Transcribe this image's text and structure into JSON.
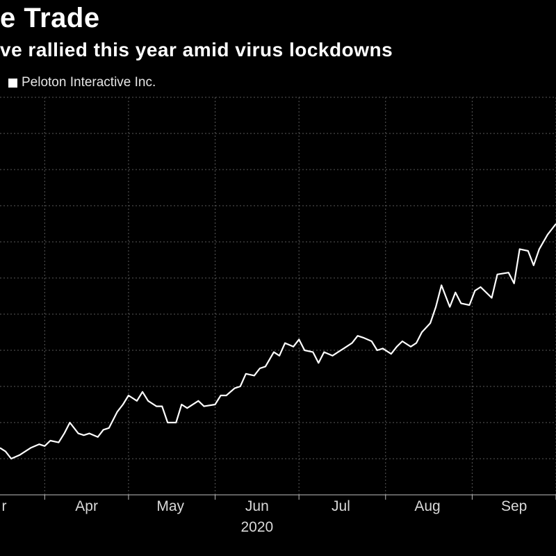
{
  "header": {
    "title": "e Trade",
    "subtitle": "ve rallied this year amid virus lockdowns"
  },
  "colors": {
    "background": "#000000",
    "line": "#ffffff",
    "grid": "#5a5a5a"
  },
  "chart_data": {
    "type": "line",
    "title": "e Trade",
    "subtitle": "ve rallied this year amid virus lockdowns",
    "legend": {
      "placement": "top-left",
      "entries": [
        "Peloton Interactive Inc."
      ]
    },
    "grid": true,
    "x_tick_labels": [
      "r",
      "Apr",
      "May",
      "Jun",
      "Jul",
      "Aug",
      "Sep"
    ],
    "x_year_label": "2020",
    "xlim": [
      "2020-03-16",
      "2020-10-01"
    ],
    "ylim": [
      0,
      11
    ],
    "series": [
      {
        "name": "Peloton Interactive Inc.",
        "x": [
          "2020-03-16",
          "2020-03-18",
          "2020-03-20",
          "2020-03-23",
          "2020-03-25",
          "2020-03-27",
          "2020-03-30",
          "2020-04-01",
          "2020-04-03",
          "2020-04-06",
          "2020-04-08",
          "2020-04-10",
          "2020-04-13",
          "2020-04-15",
          "2020-04-17",
          "2020-04-20",
          "2020-04-22",
          "2020-04-24",
          "2020-04-27",
          "2020-04-29",
          "2020-05-01",
          "2020-05-04",
          "2020-05-06",
          "2020-05-08",
          "2020-05-11",
          "2020-05-13",
          "2020-05-15",
          "2020-05-18",
          "2020-05-20",
          "2020-05-22",
          "2020-05-26",
          "2020-05-28",
          "2020-06-01",
          "2020-06-03",
          "2020-06-05",
          "2020-06-08",
          "2020-06-10",
          "2020-06-12",
          "2020-06-15",
          "2020-06-17",
          "2020-06-19",
          "2020-06-22",
          "2020-06-24",
          "2020-06-26",
          "2020-06-29",
          "2020-07-01",
          "2020-07-03",
          "2020-07-06",
          "2020-07-08",
          "2020-07-10",
          "2020-07-13",
          "2020-07-15",
          "2020-07-17",
          "2020-07-20",
          "2020-07-22",
          "2020-07-24",
          "2020-07-27",
          "2020-07-29",
          "2020-07-31",
          "2020-08-03",
          "2020-08-05",
          "2020-08-07",
          "2020-08-10",
          "2020-08-12",
          "2020-08-14",
          "2020-08-17",
          "2020-08-19",
          "2020-08-21",
          "2020-08-24",
          "2020-08-26",
          "2020-08-28",
          "2020-08-31",
          "2020-09-02",
          "2020-09-04",
          "2020-09-08",
          "2020-09-10",
          "2020-09-14",
          "2020-09-16",
          "2020-09-18",
          "2020-09-21",
          "2020-09-23",
          "2020-09-25",
          "2020-09-28",
          "2020-10-01"
        ],
        "values": [
          1.3,
          1.2,
          1.0,
          1.1,
          1.2,
          1.3,
          1.4,
          1.35,
          1.5,
          1.45,
          1.7,
          2.0,
          1.7,
          1.65,
          1.7,
          1.6,
          1.8,
          1.85,
          2.3,
          2.5,
          2.75,
          2.6,
          2.85,
          2.6,
          2.45,
          2.45,
          2.0,
          2.0,
          2.5,
          2.4,
          2.6,
          2.45,
          2.5,
          2.75,
          2.75,
          2.95,
          3.0,
          3.35,
          3.3,
          3.5,
          3.55,
          3.95,
          3.85,
          4.2,
          4.1,
          4.3,
          4.0,
          3.95,
          3.65,
          3.95,
          3.85,
          3.95,
          4.05,
          4.2,
          4.4,
          4.35,
          4.25,
          4.0,
          4.05,
          3.9,
          4.1,
          4.25,
          4.1,
          4.2,
          4.5,
          4.75,
          5.2,
          5.8,
          5.2,
          5.6,
          5.3,
          5.25,
          5.65,
          5.75,
          5.45,
          6.1,
          6.15,
          5.85,
          6.8,
          6.75,
          6.35,
          6.8,
          7.2,
          7.5
        ]
      }
    ]
  }
}
